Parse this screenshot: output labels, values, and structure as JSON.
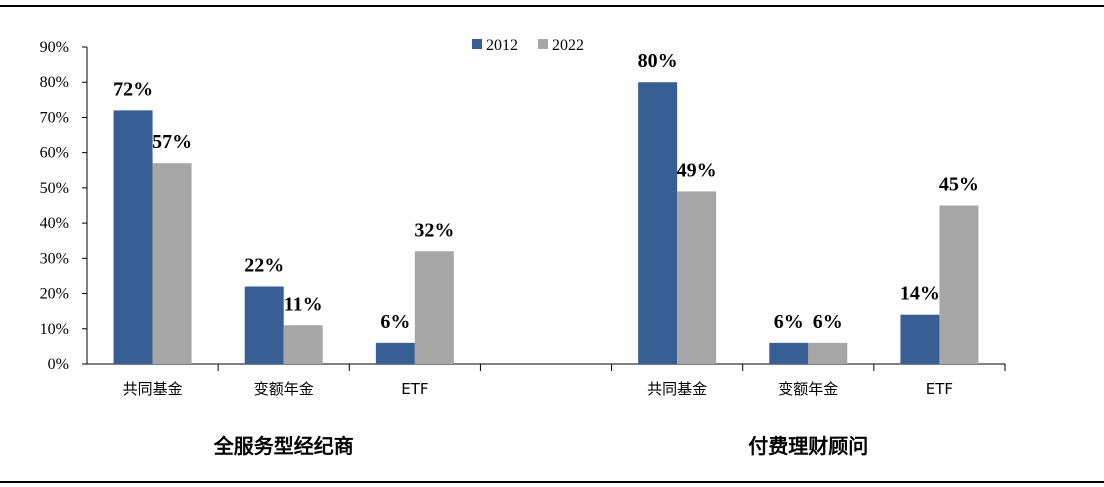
{
  "chart_data": {
    "type": "bar",
    "title": "",
    "xlabel": "",
    "ylabel": "",
    "ylim": [
      0,
      90
    ],
    "yticks": [
      "0%",
      "10%",
      "20%",
      "30%",
      "40%",
      "50%",
      "60%",
      "70%",
      "80%",
      "90%"
    ],
    "legend_position": "top-center",
    "grid": false,
    "colors": {
      "2012": "#375F93",
      "2022": "#A6A6A6"
    },
    "series": [
      {
        "name": "2012",
        "color": "#375F93"
      },
      {
        "name": "2022",
        "color": "#A6A6A6"
      }
    ],
    "groups": [
      {
        "label": "全服务型经纪商",
        "categories": [
          "共同基金",
          "变额年金",
          "ETF"
        ],
        "values_2012": [
          72,
          22,
          6
        ],
        "values_2022": [
          57,
          11,
          32
        ],
        "labels_2012": [
          "72%",
          "22%",
          "6%"
        ],
        "labels_2022": [
          "57%",
          "11%",
          "32%"
        ]
      },
      {
        "label": "付费理财顾问",
        "categories": [
          "共同基金",
          "变额年金",
          "ETF"
        ],
        "values_2012": [
          80,
          6,
          14
        ],
        "values_2022": [
          49,
          6,
          45
        ],
        "labels_2012": [
          "80%",
          "6%",
          "14%"
        ],
        "labels_2022": [
          "49%",
          "6%",
          "45%"
        ]
      }
    ]
  }
}
